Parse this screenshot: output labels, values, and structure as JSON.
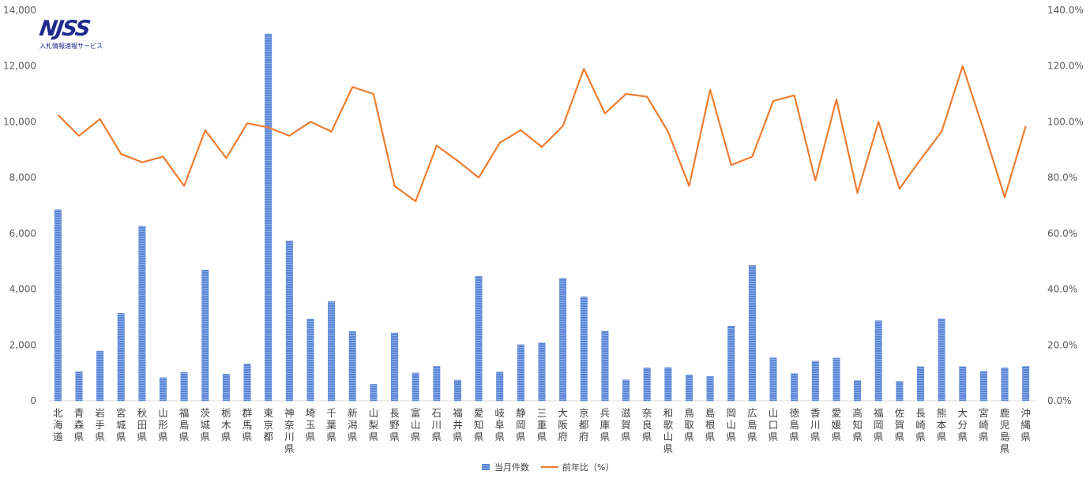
{
  "logo": {
    "mark": "NJSS",
    "subtitle": "入札情報速報サービス"
  },
  "colors": {
    "bar": "#5b86d6",
    "bar_stripe": "#8fb0ea",
    "line": "#ed7d31",
    "axis": "#d9d9d9",
    "text": "#595959"
  },
  "chart_data": {
    "type": "bar",
    "title": "",
    "xlabel": "",
    "ylabel": "",
    "categories": [
      "北海道",
      "青森県",
      "岩手県",
      "宮城県",
      "秋田県",
      "山形県",
      "福島県",
      "茨城県",
      "栃木県",
      "群馬県",
      "東京都",
      "神奈川県",
      "埼玉県",
      "千葉県",
      "新潟県",
      "山梨県",
      "長野県",
      "富山県",
      "石川県",
      "福井県",
      "愛知県",
      "岐阜県",
      "静岡県",
      "三重県",
      "大阪府",
      "京都府",
      "兵庫県",
      "滋賀県",
      "奈良県",
      "和歌山県",
      "鳥取県",
      "島根県",
      "岡山県",
      "広島県",
      "山口県",
      "徳島県",
      "香川県",
      "愛媛県",
      "高知県",
      "福岡県",
      "佐賀県",
      "長崎県",
      "熊本県",
      "大分県",
      "宮崎県",
      "鹿児島県",
      "沖縄県"
    ],
    "series": [
      {
        "name": "当月件数",
        "type": "bar",
        "axis": "left",
        "values": [
          6850,
          1040,
          1780,
          3130,
          6260,
          830,
          1010,
          4690,
          950,
          1320,
          13150,
          5730,
          2930,
          3560,
          2480,
          590,
          2430,
          1000,
          1240,
          740,
          4460,
          1030,
          2010,
          2070,
          4390,
          3730,
          2490,
          750,
          1180,
          1190,
          930,
          870,
          2680,
          4850,
          1540,
          970,
          1420,
          1530,
          720,
          2870,
          690,
          1220,
          2940,
          1220,
          1050,
          1180,
          1230
        ]
      },
      {
        "name": "前年比（%）",
        "type": "line",
        "axis": "right",
        "values": [
          102.5,
          95.0,
          101.0,
          88.5,
          85.5,
          87.5,
          77.0,
          97.0,
          87.0,
          99.5,
          98.0,
          95.0,
          100.0,
          96.5,
          112.5,
          110.0,
          77.0,
          71.5,
          91.5,
          86.0,
          80.0,
          92.5,
          97.0,
          91.0,
          98.5,
          119.0,
          103.0,
          110.0,
          109.0,
          96.5,
          77.0,
          111.5,
          84.5,
          87.5,
          107.5,
          109.5,
          79.0,
          108.0,
          74.5,
          100.0,
          76.0,
          86.5,
          96.5,
          120.0,
          97.0,
          73.0,
          98.5
        ]
      }
    ],
    "y_left": {
      "lim": [
        0,
        14000
      ],
      "ticks": [
        "0",
        "2,000",
        "4,000",
        "6,000",
        "8,000",
        "10,000",
        "12,000",
        "14,000"
      ]
    },
    "y_right": {
      "lim": [
        0,
        140
      ],
      "ticks": [
        "0.0%",
        "20.0%",
        "40.0%",
        "60.0%",
        "80.0%",
        "100.0%",
        "120.0%",
        "140.0%"
      ]
    },
    "grid": false,
    "legend_position": "bottom-center"
  }
}
